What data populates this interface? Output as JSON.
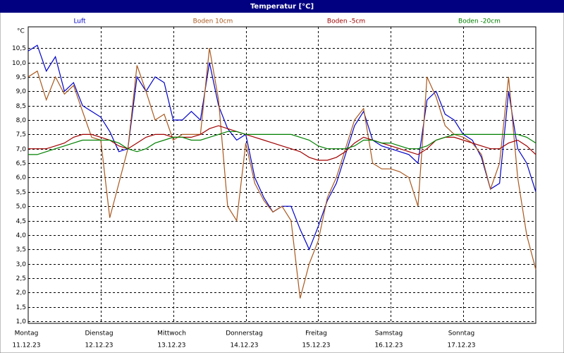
{
  "chart_data": {
    "type": "line",
    "title": "Temperatur [°C]",
    "y_unit": "°C",
    "x": [
      0,
      0.125,
      0.25,
      0.375,
      0.5,
      0.625,
      0.75,
      0.875,
      1,
      1.125,
      1.25,
      1.375,
      1.5,
      1.625,
      1.75,
      1.875,
      2,
      2.125,
      2.25,
      2.375,
      2.5,
      2.625,
      2.75,
      2.875,
      3,
      3.125,
      3.25,
      3.375,
      3.5,
      3.625,
      3.75,
      3.875,
      4,
      4.125,
      4.25,
      4.375,
      4.5,
      4.625,
      4.75,
      4.875,
      5,
      5.125,
      5.25,
      5.375,
      5.5,
      5.625,
      5.75,
      5.875,
      6,
      6.125,
      6.25,
      6.375,
      6.5,
      6.625,
      6.75,
      6.875,
      7
    ],
    "series": [
      {
        "name": "Luft",
        "color": "#0000c8",
        "values": [
          10.4,
          10.6,
          9.7,
          10.2,
          9.0,
          9.3,
          8.5,
          8.3,
          8.1,
          7.6,
          6.9,
          7.0,
          9.5,
          9.0,
          9.5,
          9.3,
          8.0,
          8.0,
          8.3,
          8.0,
          10.0,
          8.5,
          7.7,
          7.3,
          7.5,
          6.0,
          5.3,
          4.8,
          5.0,
          5.0,
          4.2,
          3.5,
          4.3,
          5.2,
          5.8,
          6.8,
          7.8,
          8.3,
          7.3,
          7.1,
          7.0,
          6.9,
          6.8,
          6.5,
          8.7,
          9.0,
          8.2,
          8.0,
          7.5,
          7.3,
          6.7,
          5.6,
          5.8,
          9.0,
          7.0,
          6.5,
          5.5
        ]
      },
      {
        "name": "Boden 10cm",
        "color": "#a8581e",
        "values": [
          9.5,
          9.7,
          8.7,
          9.5,
          8.9,
          9.2,
          8.3,
          7.4,
          7.3,
          4.6,
          5.8,
          7.0,
          9.9,
          9.0,
          8.0,
          8.2,
          7.3,
          7.5,
          7.5,
          7.5,
          10.5,
          8.7,
          5.0,
          4.5,
          7.2,
          5.8,
          5.2,
          4.8,
          5.0,
          4.5,
          1.8,
          3.0,
          3.8,
          5.3,
          6.0,
          7.0,
          8.0,
          8.4,
          6.5,
          6.3,
          6.3,
          6.2,
          6.0,
          5.0,
          9.5,
          8.8,
          7.8,
          7.5,
          7.4,
          7.2,
          6.8,
          5.6,
          6.5,
          9.5,
          6.0,
          4.0,
          2.8
        ]
      },
      {
        "name": "Boden -5cm",
        "color": "#a00000",
        "values": [
          7.0,
          7.0,
          7.0,
          7.1,
          7.2,
          7.4,
          7.5,
          7.5,
          7.4,
          7.3,
          7.1,
          7.0,
          7.2,
          7.4,
          7.5,
          7.5,
          7.4,
          7.4,
          7.4,
          7.5,
          7.7,
          7.8,
          7.7,
          7.6,
          7.5,
          7.4,
          7.3,
          7.2,
          7.1,
          7.0,
          6.9,
          6.7,
          6.6,
          6.6,
          6.7,
          6.9,
          7.2,
          7.4,
          7.3,
          7.2,
          7.1,
          7.0,
          6.9,
          6.8,
          7.0,
          7.3,
          7.4,
          7.4,
          7.3,
          7.2,
          7.1,
          7.0,
          7.0,
          7.2,
          7.3,
          7.1,
          6.8
        ]
      },
      {
        "name": "Boden -20cm",
        "color": "#008000",
        "values": [
          6.8,
          6.8,
          6.9,
          7.0,
          7.1,
          7.2,
          7.3,
          7.3,
          7.3,
          7.3,
          7.2,
          7.0,
          6.9,
          7.0,
          7.2,
          7.3,
          7.4,
          7.4,
          7.3,
          7.3,
          7.4,
          7.5,
          7.6,
          7.6,
          7.5,
          7.5,
          7.5,
          7.5,
          7.5,
          7.5,
          7.4,
          7.3,
          7.1,
          7.0,
          7.0,
          7.0,
          7.1,
          7.3,
          7.3,
          7.2,
          7.2,
          7.1,
          7.0,
          7.0,
          7.1,
          7.3,
          7.4,
          7.5,
          7.5,
          7.5,
          7.5,
          7.5,
          7.5,
          7.5,
          7.5,
          7.4,
          7.2
        ]
      }
    ],
    "xlim": [
      0,
      7
    ],
    "xticks": [
      {
        "value": 0,
        "label": "Montag",
        "date": "11.12.23"
      },
      {
        "value": 1,
        "label": "Dienstag",
        "date": "12.12.23"
      },
      {
        "value": 2,
        "label": "Mittwoch",
        "date": "13.12.23"
      },
      {
        "value": 3,
        "label": "Donnerstag",
        "date": "14.12.23"
      },
      {
        "value": 4,
        "label": "Freitag",
        "date": "15.12.23"
      },
      {
        "value": 5,
        "label": "Samstag",
        "date": "16.12.23"
      },
      {
        "value": 6,
        "label": "Sonntag",
        "date": "17.12.23"
      }
    ],
    "ylim": [
      0.93,
      11.24
    ],
    "yticks": [
      {
        "value": 1.0,
        "label": "1,0"
      },
      {
        "value": 1.5,
        "label": "1,5"
      },
      {
        "value": 2.0,
        "label": "2,0"
      },
      {
        "value": 2.5,
        "label": "2,5"
      },
      {
        "value": 3.0,
        "label": "3,0"
      },
      {
        "value": 3.5,
        "label": "3,5"
      },
      {
        "value": 4.0,
        "label": "4,0"
      },
      {
        "value": 4.5,
        "label": "4,5"
      },
      {
        "value": 5.0,
        "label": "5,0"
      },
      {
        "value": 5.5,
        "label": "5,5"
      },
      {
        "value": 6.0,
        "label": "6,0"
      },
      {
        "value": 6.5,
        "label": "6,5"
      },
      {
        "value": 7.0,
        "label": "7,0"
      },
      {
        "value": 7.5,
        "label": "7,5"
      },
      {
        "value": 8.0,
        "label": "8,0"
      },
      {
        "value": 8.5,
        "label": "8,5"
      },
      {
        "value": 9.0,
        "label": "9,0"
      },
      {
        "value": 9.5,
        "label": "9,5"
      },
      {
        "value": 10.0,
        "label": "10,0"
      },
      {
        "value": 10.5,
        "label": "10,5"
      }
    ],
    "grid": true
  }
}
